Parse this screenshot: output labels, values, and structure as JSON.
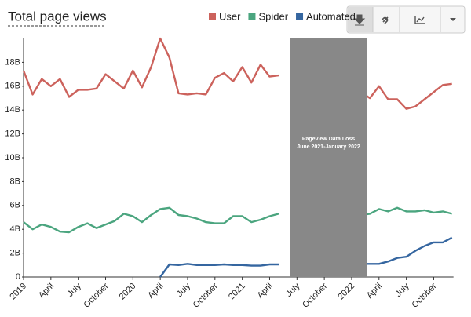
{
  "chart_data": {
    "type": "line",
    "title": "Total page views",
    "x": [
      "2019-01",
      "2019-02",
      "2019-03",
      "2019-04",
      "2019-05",
      "2019-06",
      "2019-07",
      "2019-08",
      "2019-09",
      "2019-10",
      "2019-11",
      "2019-12",
      "2020-01",
      "2020-02",
      "2020-03",
      "2020-04",
      "2020-05",
      "2020-06",
      "2020-07",
      "2020-08",
      "2020-09",
      "2020-10",
      "2020-11",
      "2020-12",
      "2021-01",
      "2021-02",
      "2021-03",
      "2021-04",
      "2021-05",
      "2021-06",
      "2021-07",
      "2021-08",
      "2021-09",
      "2021-10",
      "2021-11",
      "2021-12",
      "2022-01",
      "2022-02",
      "2022-03",
      "2022-04",
      "2022-05",
      "2022-06",
      "2022-07",
      "2022-08",
      "2022-09",
      "2022-10",
      "2022-11",
      "2022-12"
    ],
    "series": [
      {
        "name": "User",
        "color": "#cc625c",
        "values": [
          17300000000,
          15300000000,
          16600000000,
          16000000000,
          16600000000,
          15100000000,
          15700000000,
          15700000000,
          15800000000,
          17000000000,
          16400000000,
          15800000000,
          17300000000,
          15900000000,
          17600000000,
          20000000000,
          18400000000,
          15400000000,
          15300000000,
          15400000000,
          15300000000,
          16700000000,
          17100000000,
          16400000000,
          17600000000,
          16300000000,
          17800000000,
          16800000000,
          16900000000,
          null,
          null,
          null,
          null,
          null,
          null,
          null,
          null,
          15500000000,
          15000000000,
          16000000000,
          14900000000,
          14900000000,
          14100000000,
          14300000000,
          14900000000,
          15500000000,
          16100000000,
          16200000000
        ]
      },
      {
        "name": "Spider",
        "color": "#4ba57f",
        "values": [
          4600000000,
          4000000000,
          4400000000,
          4200000000,
          3800000000,
          3750000000,
          4200000000,
          4500000000,
          4100000000,
          4400000000,
          4700000000,
          5300000000,
          5100000000,
          4600000000,
          5200000000,
          5700000000,
          5800000000,
          5200000000,
          5100000000,
          4900000000,
          4600000000,
          4500000000,
          4500000000,
          5100000000,
          5100000000,
          4600000000,
          4800000000,
          5100000000,
          5300000000,
          null,
          null,
          null,
          null,
          null,
          null,
          null,
          null,
          5200000000,
          5300000000,
          5700000000,
          5500000000,
          5800000000,
          5500000000,
          5500000000,
          5600000000,
          5400000000,
          5500000000,
          5300000000
        ]
      },
      {
        "name": "Automated",
        "color": "#3566a0",
        "values": [
          null,
          null,
          null,
          null,
          null,
          null,
          null,
          null,
          null,
          null,
          null,
          null,
          null,
          null,
          null,
          0,
          1050000000,
          1000000000,
          1100000000,
          1000000000,
          1000000000,
          1000000000,
          1050000000,
          1000000000,
          1000000000,
          950000000,
          950000000,
          1050000000,
          1050000000,
          null,
          null,
          null,
          null,
          null,
          null,
          null,
          null,
          1100000000,
          1100000000,
          1100000000,
          1300000000,
          1600000000,
          1700000000,
          2200000000,
          2600000000,
          2900000000,
          2900000000,
          3300000000
        ]
      }
    ],
    "ylim": [
      0,
      20000000000
    ],
    "yticks": [
      0,
      {
        "value": 2000000000,
        "label": "2B"
      },
      {
        "value": 4000000000,
        "label": "4B"
      },
      {
        "value": 6000000000,
        "label": "6B"
      },
      {
        "value": 8000000000,
        "label": "8B"
      },
      {
        "value": 10000000000,
        "label": "10B"
      },
      {
        "value": 12000000000,
        "label": "12B"
      },
      {
        "value": 14000000000,
        "label": "14B"
      },
      {
        "value": 16000000000,
        "label": "16B"
      },
      {
        "value": 18000000000,
        "label": "18B"
      }
    ],
    "xticks": [
      {
        "value": "2019-01",
        "label": "2019"
      },
      {
        "value": "2019-04",
        "label": "April"
      },
      {
        "value": "2019-07",
        "label": "July"
      },
      {
        "value": "2019-10",
        "label": "October"
      },
      {
        "value": "2020-01",
        "label": "2020"
      },
      {
        "value": "2020-04",
        "label": "April"
      },
      {
        "value": "2020-07",
        "label": "July"
      },
      {
        "value": "2020-10",
        "label": "October"
      },
      {
        "value": "2021-01",
        "label": "2021"
      },
      {
        "value": "2021-04",
        "label": "April"
      },
      {
        "value": "2021-07",
        "label": "July"
      },
      {
        "value": "2021-10",
        "label": "October"
      },
      {
        "value": "2022-01",
        "label": "2022"
      },
      {
        "value": "2022-04",
        "label": "April"
      },
      {
        "value": "2022-07",
        "label": "July"
      },
      {
        "value": "2022-10",
        "label": "October"
      }
    ],
    "annotation": {
      "title": "Pageview Data Loss",
      "subtitle": "June 2021-January 2022"
    },
    "grid": false
  }
}
